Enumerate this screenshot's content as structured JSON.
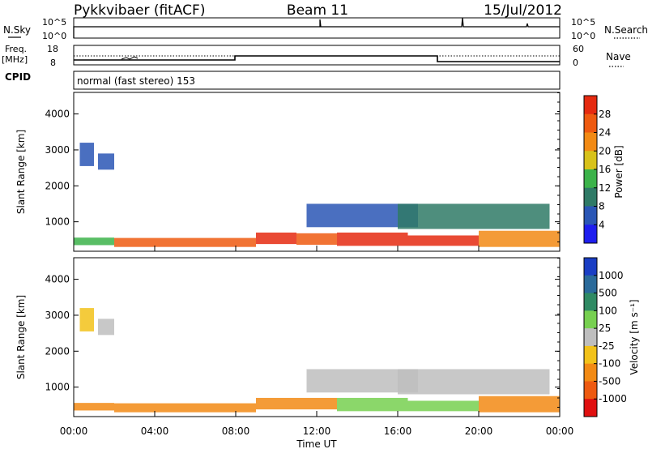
{
  "header": {
    "radar": "Pykkvibaer (fitACF)",
    "beam": "Beam 11",
    "date": "15/Jul/2012"
  },
  "summary": {
    "nsky_label": "N.Sky",
    "nsearch_label": "N.Search",
    "nsky_ticks": [
      "10^5",
      "10^0"
    ],
    "nsearch_ticks": [
      "10^5",
      "10^0"
    ],
    "freq_label": "Freq.",
    "freq_unit": "[MHz]",
    "freq_ticks": [
      "18",
      "8"
    ],
    "nave_label": "Nave",
    "nave_ticks": [
      "60",
      "0"
    ],
    "cpid_label": "CPID",
    "cpid_text": "normal (fast stereo) 153"
  },
  "axes": {
    "xlabel": "Time UT",
    "xticks": [
      "00:00",
      "04:00",
      "08:00",
      "12:00",
      "16:00",
      "20:00",
      "00:00"
    ],
    "ylabel": "Slant Range [km]",
    "yticks": [
      "1000",
      "2000",
      "3000",
      "4000"
    ]
  },
  "colorbars": {
    "power": {
      "label": "Power [dB]",
      "ticks": [
        "4",
        "8",
        "12",
        "16",
        "20",
        "24",
        "28"
      ],
      "colors": [
        "#1e1eee",
        "#2a56b5",
        "#2f7a66",
        "#3cb34a",
        "#d8c21a",
        "#f28a14",
        "#ee5a10",
        "#e52a10"
      ]
    },
    "velocity": {
      "label": "Velocity [m s⁻¹]",
      "ticks": [
        "1000",
        "500",
        "100",
        "25",
        "-25",
        "-100",
        "-500",
        "-1000"
      ],
      "colors": [
        "#1a3ec4",
        "#2a6a9a",
        "#2f8a63",
        "#77d050",
        "#bebebe",
        "#f2c21a",
        "#f28a14",
        "#ee5a10",
        "#e01010"
      ]
    }
  },
  "chart_data": [
    {
      "type": "heatmap",
      "title": "Power",
      "xlabel": "Time UT",
      "ylabel": "Slant Range [km]",
      "xlim": [
        "00:00",
        "24:00"
      ],
      "ylim": [
        180,
        4600
      ],
      "colorbar_label": "Power [dB]",
      "colorbar_range": [
        0,
        32
      ],
      "regions": [
        {
          "t0": 0.0,
          "t1": 2.0,
          "r0": 350,
          "r1": 560,
          "value": 14
        },
        {
          "t0": 2.0,
          "t1": 9.0,
          "r0": 300,
          "r1": 550,
          "value": 24
        },
        {
          "t0": 9.0,
          "t1": 11.0,
          "r0": 380,
          "r1": 700,
          "value": 28
        },
        {
          "t0": 11.0,
          "t1": 13.0,
          "r0": 360,
          "r1": 680,
          "value": 26
        },
        {
          "t0": 13.0,
          "t1": 16.5,
          "r0": 330,
          "r1": 700,
          "value": 30
        },
        {
          "t0": 16.5,
          "t1": 20.0,
          "r0": 330,
          "r1": 620,
          "value": 28
        },
        {
          "t0": 20.0,
          "t1": 24.0,
          "r0": 300,
          "r1": 750,
          "value": 22
        },
        {
          "t0": 0.3,
          "t1": 1.0,
          "r0": 2550,
          "r1": 3200,
          "value": 6
        },
        {
          "t0": 1.2,
          "t1": 2.0,
          "r0": 2450,
          "r1": 2900,
          "value": 6
        },
        {
          "t0": 11.5,
          "t1": 17.0,
          "r0": 850,
          "r1": 1500,
          "value": 7
        },
        {
          "t0": 16.0,
          "t1": 23.5,
          "r0": 800,
          "r1": 1500,
          "value": 9
        }
      ]
    },
    {
      "type": "heatmap",
      "title": "Velocity",
      "xlabel": "Time UT",
      "ylabel": "Slant Range [km]",
      "xlim": [
        "00:00",
        "24:00"
      ],
      "ylim": [
        180,
        4600
      ],
      "colorbar_label": "Velocity [m s⁻¹]",
      "colorbar_range": [
        -1200,
        1200
      ],
      "regions": [
        {
          "t0": 0.0,
          "t1": 2.0,
          "r0": 350,
          "r1": 560,
          "value": -300
        },
        {
          "t0": 2.0,
          "t1": 9.0,
          "r0": 300,
          "r1": 550,
          "value": -200
        },
        {
          "t0": 9.0,
          "t1": 13.0,
          "r0": 380,
          "r1": 700,
          "value": -150
        },
        {
          "t0": 13.0,
          "t1": 16.5,
          "r0": 330,
          "r1": 700,
          "value": 60
        },
        {
          "t0": 16.5,
          "t1": 20.0,
          "r0": 330,
          "r1": 620,
          "value": 60
        },
        {
          "t0": 20.0,
          "t1": 24.0,
          "r0": 300,
          "r1": 750,
          "value": -200
        },
        {
          "t0": 0.3,
          "t1": 1.0,
          "r0": 2550,
          "r1": 3200,
          "value": -60
        },
        {
          "t0": 1.2,
          "t1": 2.0,
          "r0": 2450,
          "r1": 2900,
          "value": 0
        },
        {
          "t0": 11.5,
          "t1": 17.0,
          "r0": 850,
          "r1": 1500,
          "value": 0
        },
        {
          "t0": 16.0,
          "t1": 23.5,
          "r0": 800,
          "r1": 1500,
          "value": 0
        }
      ]
    }
  ]
}
